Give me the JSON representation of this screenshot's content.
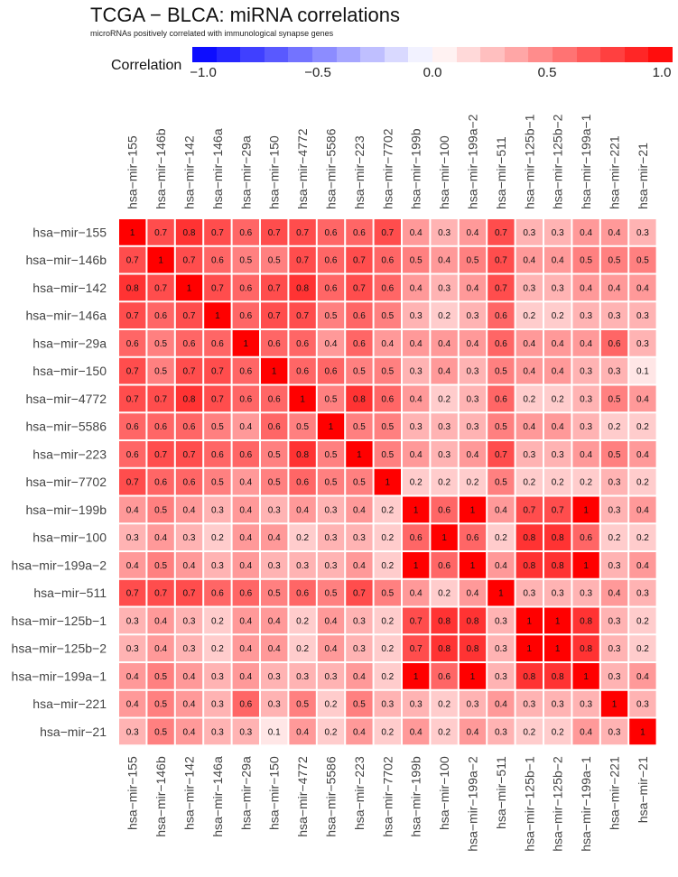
{
  "chart_data": {
    "type": "heatmap",
    "title": "TCGA − BLCA: miRNA correlations",
    "subtitle": "microRNAs positively correlated with immunological synapse genes",
    "legend": {
      "title": "Correlation",
      "min": -1.0,
      "max": 1.0,
      "ticks": [
        "−1.0",
        "−0.5",
        "0.0",
        "0.5",
        "1.0"
      ],
      "tick_values": [
        -1.0,
        -0.5,
        0.0,
        0.5,
        1.0
      ],
      "low_color": "#0000ff",
      "mid_color": "#ffffff",
      "high_color": "#ff0000",
      "placement": "top"
    },
    "rows": [
      "hsa−mir−155",
      "hsa−mir−146b",
      "hsa−mir−142",
      "hsa−mir−146a",
      "hsa−mir−29a",
      "hsa−mir−150",
      "hsa−mir−4772",
      "hsa−mir−5586",
      "hsa−mir−223",
      "hsa−mir−7702",
      "hsa−mir−199b",
      "hsa−mir−100",
      "hsa−mir−199a−2",
      "hsa−mir−511",
      "hsa−mir−125b−1",
      "hsa−mir−125b−2",
      "hsa−mir−199a−1",
      "hsa−mir−221",
      "hsa−mir−21"
    ],
    "columns": [
      "hsa−mir−155",
      "hsa−mir−146b",
      "hsa−mir−142",
      "hsa−mir−146a",
      "hsa−mir−29a",
      "hsa−mir−150",
      "hsa−mir−4772",
      "hsa−mir−5586",
      "hsa−mir−223",
      "hsa−mir−7702",
      "hsa−mir−199b",
      "hsa−mir−100",
      "hsa−mir−199a−2",
      "hsa−mir−511",
      "hsa−mir−125b−1",
      "hsa−mir−125b−2",
      "hsa−mir−199a−1",
      "hsa−mir−221",
      "hsa−mir−21"
    ],
    "values": [
      [
        1,
        0.7,
        0.8,
        0.7,
        0.6,
        0.7,
        0.7,
        0.6,
        0.6,
        0.7,
        0.4,
        0.3,
        0.4,
        0.7,
        0.3,
        0.3,
        0.4,
        0.4,
        0.3
      ],
      [
        0.7,
        1,
        0.7,
        0.6,
        0.5,
        0.5,
        0.7,
        0.6,
        0.7,
        0.6,
        0.5,
        0.4,
        0.5,
        0.7,
        0.4,
        0.4,
        0.5,
        0.5,
        0.5
      ],
      [
        0.8,
        0.7,
        1,
        0.7,
        0.6,
        0.7,
        0.8,
        0.6,
        0.7,
        0.6,
        0.4,
        0.3,
        0.4,
        0.7,
        0.3,
        0.3,
        0.4,
        0.4,
        0.4
      ],
      [
        0.7,
        0.6,
        0.7,
        1,
        0.6,
        0.7,
        0.7,
        0.5,
        0.6,
        0.5,
        0.3,
        0.2,
        0.3,
        0.6,
        0.2,
        0.2,
        0.3,
        0.3,
        0.3
      ],
      [
        0.6,
        0.5,
        0.6,
        0.6,
        1,
        0.6,
        0.6,
        0.4,
        0.6,
        0.4,
        0.4,
        0.4,
        0.4,
        0.6,
        0.4,
        0.4,
        0.4,
        0.6,
        0.3
      ],
      [
        0.7,
        0.5,
        0.7,
        0.7,
        0.6,
        1,
        0.6,
        0.6,
        0.5,
        0.5,
        0.3,
        0.4,
        0.3,
        0.5,
        0.4,
        0.4,
        0.3,
        0.3,
        0.1
      ],
      [
        0.7,
        0.7,
        0.8,
        0.7,
        0.6,
        0.6,
        1,
        0.5,
        0.8,
        0.6,
        0.4,
        0.2,
        0.3,
        0.6,
        0.2,
        0.2,
        0.3,
        0.5,
        0.4
      ],
      [
        0.6,
        0.6,
        0.6,
        0.5,
        0.4,
        0.6,
        0.5,
        1,
        0.5,
        0.5,
        0.3,
        0.3,
        0.3,
        0.5,
        0.4,
        0.4,
        0.3,
        0.2,
        0.2
      ],
      [
        0.6,
        0.7,
        0.7,
        0.6,
        0.6,
        0.5,
        0.8,
        0.5,
        1,
        0.5,
        0.4,
        0.3,
        0.4,
        0.7,
        0.3,
        0.3,
        0.4,
        0.5,
        0.4
      ],
      [
        0.7,
        0.6,
        0.6,
        0.5,
        0.4,
        0.5,
        0.6,
        0.5,
        0.5,
        1,
        0.2,
        0.2,
        0.2,
        0.5,
        0.2,
        0.2,
        0.2,
        0.3,
        0.2
      ],
      [
        0.4,
        0.5,
        0.4,
        0.3,
        0.4,
        0.3,
        0.4,
        0.3,
        0.4,
        0.2,
        1,
        0.6,
        1,
        0.4,
        0.7,
        0.7,
        1,
        0.3,
        0.4
      ],
      [
        0.3,
        0.4,
        0.3,
        0.2,
        0.4,
        0.4,
        0.2,
        0.3,
        0.3,
        0.2,
        0.6,
        1,
        0.6,
        0.2,
        0.8,
        0.8,
        0.6,
        0.2,
        0.2
      ],
      [
        0.4,
        0.5,
        0.4,
        0.3,
        0.4,
        0.3,
        0.3,
        0.3,
        0.4,
        0.2,
        1,
        0.6,
        1,
        0.4,
        0.8,
        0.8,
        1,
        0.3,
        0.4
      ],
      [
        0.7,
        0.7,
        0.7,
        0.6,
        0.6,
        0.5,
        0.6,
        0.5,
        0.7,
        0.5,
        0.4,
        0.2,
        0.4,
        1,
        0.3,
        0.3,
        0.3,
        0.4,
        0.3
      ],
      [
        0.3,
        0.4,
        0.3,
        0.2,
        0.4,
        0.4,
        0.2,
        0.4,
        0.3,
        0.2,
        0.7,
        0.8,
        0.8,
        0.3,
        1,
        1,
        0.8,
        0.3,
        0.2
      ],
      [
        0.3,
        0.4,
        0.3,
        0.2,
        0.4,
        0.4,
        0.2,
        0.4,
        0.3,
        0.2,
        0.7,
        0.8,
        0.8,
        0.3,
        1,
        1,
        0.8,
        0.3,
        0.2
      ],
      [
        0.4,
        0.5,
        0.4,
        0.3,
        0.4,
        0.3,
        0.3,
        0.3,
        0.4,
        0.2,
        1,
        0.6,
        1,
        0.3,
        0.8,
        0.8,
        1,
        0.3,
        0.4
      ],
      [
        0.4,
        0.5,
        0.4,
        0.3,
        0.6,
        0.3,
        0.5,
        0.2,
        0.5,
        0.3,
        0.3,
        0.2,
        0.3,
        0.4,
        0.3,
        0.3,
        0.3,
        1,
        0.3
      ],
      [
        0.3,
        0.5,
        0.4,
        0.3,
        0.3,
        0.1,
        0.4,
        0.2,
        0.4,
        0.2,
        0.4,
        0.2,
        0.4,
        0.3,
        0.2,
        0.2,
        0.4,
        0.3,
        1
      ]
    ]
  }
}
